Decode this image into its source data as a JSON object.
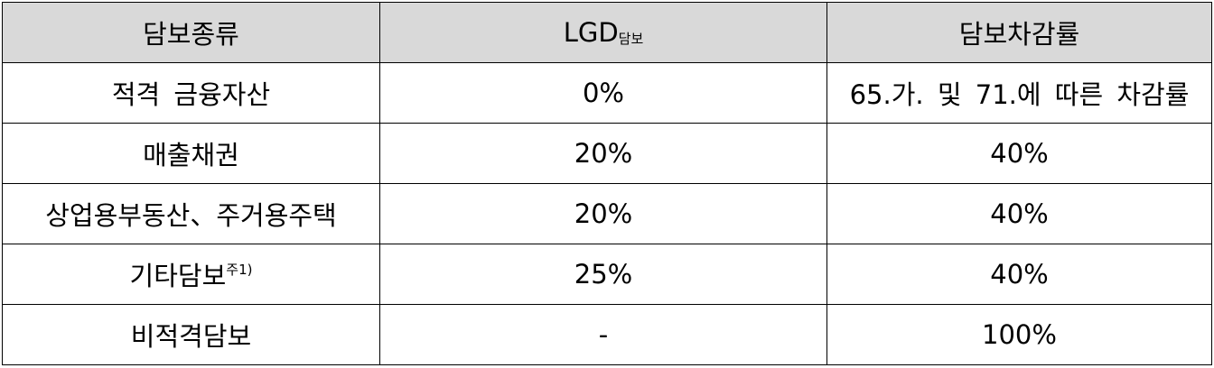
{
  "table": {
    "headers": {
      "collateral_type": "담보종류",
      "lgd_main": "LGD",
      "lgd_sub": "담보",
      "haircut": "담보차감률"
    },
    "rows": [
      {
        "type": "적격 금융자산",
        "type_note": "",
        "lgd": "0%",
        "haircut": "65.가. 및 71.에 따른 차감률"
      },
      {
        "type": "매출채권",
        "type_note": "",
        "lgd": "20%",
        "haircut": "40%"
      },
      {
        "type": "상업용부동산、주거용주택",
        "type_note": "",
        "lgd": "20%",
        "haircut": "40%"
      },
      {
        "type": "기타담보",
        "type_note": "주1)",
        "lgd": "25%",
        "haircut": "40%"
      },
      {
        "type": "비적격담보",
        "type_note": "",
        "lgd": "-",
        "haircut": "100%"
      }
    ]
  }
}
